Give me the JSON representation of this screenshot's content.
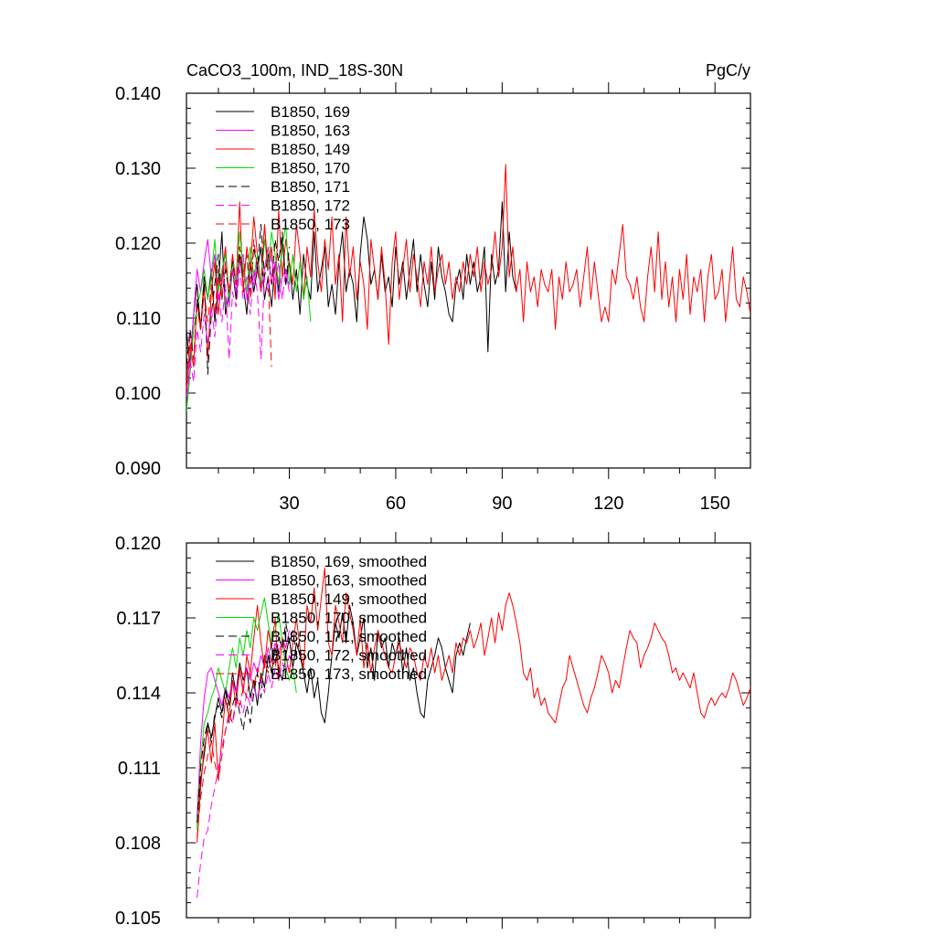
{
  "chart_data": [
    {
      "type": "line",
      "title": "CaCO3_100m, IND_18S-30N",
      "units": "PgC/y",
      "xlim": [
        1,
        160
      ],
      "ylim": [
        0.09,
        0.14
      ],
      "xticks": [
        30,
        60,
        90,
        120,
        150
      ],
      "xtick_labels": [
        "30",
        "60",
        "90",
        "120",
        "150"
      ],
      "yticks": [
        0.09,
        0.1,
        0.11,
        0.12,
        0.13,
        0.14
      ],
      "ytick_labels": [
        "0.090",
        "0.100",
        "0.110",
        "0.120",
        "0.130",
        "0.140"
      ],
      "legend_position": "top-left",
      "series": [
        {
          "name": "B1850, 169",
          "color": "#000000",
          "dash": "solid",
          "start": 1,
          "values": [
            0.1085,
            0.1035,
            0.1105,
            0.1145,
            0.1085,
            0.1155,
            0.1125,
            0.1165,
            0.1095,
            0.1145,
            0.1215,
            0.1105,
            0.1135,
            0.1165,
            0.1125,
            0.1185,
            0.1145,
            0.1105,
            0.1175,
            0.1135,
            0.1165,
            0.1195,
            0.1125,
            0.1155,
            0.1115,
            0.1175,
            0.1135,
            0.1205,
            0.1145,
            0.1175,
            0.1125,
            0.1165,
            0.1105,
            0.1185,
            0.1145,
            0.1125,
            0.1215,
            0.1135,
            0.1165,
            0.1195,
            0.1115,
            0.1145,
            0.1105,
            0.1175,
            0.1215,
            0.1135,
            0.1165,
            0.1145,
            0.1095,
            0.1185,
            0.1235,
            0.1205,
            0.1145,
            0.1165,
            0.1125,
            0.1185,
            0.1135,
            0.1155,
            0.1115,
            0.1195,
            0.1145,
            0.1175,
            0.1125,
            0.1165,
            0.1205,
            0.1135,
            0.1185,
            0.1145,
            0.1115,
            0.1175,
            0.1125,
            0.1195,
            0.1155,
            0.1135,
            0.1105,
            0.1095,
            0.1145,
            0.1165,
            0.1125,
            0.1185,
            0.1145,
            0.1175,
            0.1135,
            0.1155,
            0.1195,
            0.1055,
            0.1185,
            0.1145,
            0.1165,
            0.1255,
            0.1135,
            0.1215,
            0.1155,
            0.1135
          ]
        },
        {
          "name": "B1850, 163",
          "color": "#ff00ff",
          "dash": "solid",
          "start": 1,
          "values": [
            0.0975,
            0.1045,
            0.1105,
            0.1165,
            0.1135,
            0.1175,
            0.1205,
            0.1155,
            0.1185,
            0.1125,
            0.1145,
            0.1195,
            0.1115,
            0.1165,
            0.1135,
            0.1175,
            0.1185,
            0.1125,
            0.1155,
            0.1145,
            0.1175,
            0.1135,
            0.1165,
            0.1195,
            0.1145,
            0.1175,
            0.1125,
            0.1155,
            0.1165,
            0.1135
          ]
        },
        {
          "name": "B1850, 149",
          "color": "#ff0000",
          "dash": "solid",
          "start": 1,
          "values": [
            0.1005,
            0.1065,
            0.1035,
            0.1125,
            0.1085,
            0.1145,
            0.1045,
            0.1135,
            0.1175,
            0.1105,
            0.1155,
            0.1195,
            0.1125,
            0.1185,
            0.1145,
            0.1255,
            0.1135,
            0.1195,
            0.1165,
            0.1235,
            0.1185,
            0.1145,
            0.1225,
            0.1165,
            0.1195,
            0.1125,
            0.1245,
            0.1155,
            0.1205,
            0.1175,
            0.1145,
            0.1225,
            0.1185,
            0.1125,
            0.1195,
            0.1155,
            0.1245,
            0.1175,
            0.1135,
            0.1205,
            0.1165,
            0.1235,
            0.1145,
            0.1185,
            0.1095,
            0.1235,
            0.1155,
            0.1195,
            0.1125,
            0.1175,
            0.1145,
            0.1085,
            0.1205,
            0.1165,
            0.1125,
            0.1195,
            0.1145,
            0.1065,
            0.1175,
            0.1215,
            0.1125,
            0.1165,
            0.1205,
            0.1135,
            0.1185,
            0.1155,
            0.1115,
            0.1175,
            0.1145,
            0.1195,
            0.1135,
            0.1165,
            0.1185,
            0.1145,
            0.1175,
            0.1125,
            0.1155,
            0.1135,
            0.1175,
            0.1145,
            0.1185,
            0.1155,
            0.1195,
            0.1135,
            0.1175,
            0.1145,
            0.1165,
            0.1215,
            0.1155,
            0.1195,
            0.1305,
            0.1155,
            0.1195,
            0.1135,
            0.1165,
            0.1095,
            0.1175,
            0.1135,
            0.1155,
            0.1115,
            0.1165,
            0.1145,
            0.1135,
            0.1165,
            0.1085,
            0.1155,
            0.1125,
            0.1175,
            0.1135,
            0.1145,
            0.1165,
            0.1115,
            0.1155,
            0.1195,
            0.1125,
            0.1175,
            0.1135,
            0.1095,
            0.1115,
            0.1095,
            0.1165,
            0.1145,
            0.1185,
            0.1225,
            0.1155,
            0.1145,
            0.1125,
            0.1155,
            0.1115,
            0.1095,
            0.1155,
            0.1195,
            0.1135,
            0.1215,
            0.1125,
            0.1175,
            0.1115,
            0.1155,
            0.1095,
            0.1165,
            0.1125,
            0.1185,
            0.1105,
            0.1155,
            0.1135,
            0.1165,
            0.1095,
            0.1155,
            0.1185,
            0.1125,
            0.1135,
            0.1165,
            0.1095,
            0.1145,
            0.1195,
            0.1125,
            0.1115,
            0.1155,
            0.1135,
            0.1105,
            0.1165,
            0.1175
          ]
        },
        {
          "name": "B1850, 170",
          "color": "#00dd00",
          "dash": "solid",
          "start": 1,
          "values": [
            0.0975,
            0.1025,
            0.1085,
            0.1115,
            0.1135,
            0.1165,
            0.1125,
            0.1155,
            0.1205,
            0.1135,
            0.1165,
            0.1185,
            0.1125,
            0.1175,
            0.1145,
            0.1215,
            0.1165,
            0.1135,
            0.1195,
            0.1155,
            0.1185,
            0.1145,
            0.1205,
            0.1165,
            0.1215,
            0.1185,
            0.1145,
            0.1195,
            0.1225,
            0.1145,
            0.1185,
            0.1135,
            0.1175,
            0.1125,
            0.1155,
            0.1095
          ]
        },
        {
          "name": "B1850, 171",
          "color": "#000000",
          "dash": "dash",
          "start": 1,
          "values": [
            0.1035,
            0.1085,
            0.1045,
            0.1125,
            0.1085,
            0.1155,
            0.1025,
            0.1105,
            0.1145,
            0.1185,
            0.1125,
            0.1165,
            0.1135,
            0.1175,
            0.1145,
            0.1195,
            0.1155,
            0.1185,
            0.1135,
            0.1195,
            0.1165,
            0.1225,
            0.1155,
            0.1185,
            0.1145,
            0.1205,
            0.1175,
            0.1215,
            0.1145,
            0.1195
          ]
        },
        {
          "name": "B1850, 172",
          "color": "#ff00ff",
          "dash": "dash",
          "start": 1,
          "values": [
            0.0995,
            0.1045,
            0.1015,
            0.1085,
            0.1055,
            0.1105,
            0.1065,
            0.1115,
            0.1075,
            0.1135,
            0.1095,
            0.1145,
            0.1045,
            0.1135,
            0.1115,
            0.1165,
            0.1125,
            0.1155,
            0.1105,
            0.1165,
            0.1135,
            0.1045,
            0.1155,
            0.1135,
            0.1185,
            0.1145,
            0.1175,
            0.1125,
            0.1165,
            0.1145
          ]
        },
        {
          "name": "B1850, 173",
          "color": "#ff0000",
          "dash": "dash",
          "start": 1,
          "values": [
            0.1015,
            0.1075,
            0.1045,
            0.1115,
            0.1085,
            0.1135,
            0.1095,
            0.1145,
            0.1105,
            0.1165,
            0.1125,
            0.1175,
            0.1135,
            0.1185,
            0.1145,
            0.1195,
            0.1155,
            0.1185,
            0.1125,
            0.1205,
            0.1165,
            0.1135,
            0.1225,
            0.1155,
            0.1035
          ]
        }
      ]
    },
    {
      "type": "line",
      "xlim": [
        1,
        160
      ],
      "ylim": [
        0.105,
        0.12
      ],
      "xticks": [
        30,
        60,
        90,
        120,
        150
      ],
      "yticks": [
        0.105,
        0.108,
        0.111,
        0.114,
        0.117,
        0.12
      ],
      "ytick_labels": [
        "0.105",
        "0.108",
        "0.111",
        "0.114",
        "0.117",
        "0.120"
      ],
      "legend_position": "top-left",
      "series": [
        {
          "name": "B1850, 169, smoothed",
          "color": "#000000",
          "dash": "solid",
          "start": 4,
          "values": [
            0.1088,
            0.1105,
            0.1115,
            0.1128,
            0.1122,
            0.113,
            0.1138,
            0.1132,
            0.1142,
            0.1135,
            0.1148,
            0.114,
            0.1152,
            0.1145,
            0.115,
            0.1138,
            0.1145,
            0.1135,
            0.1148,
            0.1142,
            0.1155,
            0.1148,
            0.1158,
            0.115,
            0.1145,
            0.1155,
            0.1162,
            0.115,
            0.116,
            0.1155,
            0.1148,
            0.114,
            0.115,
            0.1138,
            0.1145,
            0.1132,
            0.1128,
            0.114,
            0.1155,
            0.1168,
            0.1162,
            0.1172,
            0.116,
            0.1175,
            0.1168,
            0.1155,
            0.1162,
            0.117,
            0.115,
            0.1158,
            0.1145,
            0.1165,
            0.1158,
            0.1162,
            0.115,
            0.116,
            0.1155,
            0.1162,
            0.1148,
            0.1158,
            0.1145,
            0.115,
            0.114,
            0.1132,
            0.113,
            0.1145,
            0.115,
            0.1155,
            0.1162,
            0.1158,
            0.115,
            0.1145,
            0.114,
            0.1155,
            0.116,
            0.1155,
            0.1162,
            0.1168
          ]
        },
        {
          "name": "B1850, 163, smoothed",
          "color": "#ff00ff",
          "dash": "solid",
          "start": 4,
          "values": [
            0.109,
            0.112,
            0.1138,
            0.1148,
            0.115,
            0.1145,
            0.114,
            0.1135,
            0.1142,
            0.1138,
            0.1145,
            0.114,
            0.1148,
            0.1142,
            0.115,
            0.1145,
            0.1152,
            0.1148,
            0.1155,
            0.115,
            0.1158,
            0.1152,
            0.116,
            0.1155,
            0.1162,
            0.1158,
            0.1165
          ]
        },
        {
          "name": "B1850, 149, smoothed",
          "color": "#ff0000",
          "dash": "solid",
          "start": 4,
          "values": [
            0.108,
            0.1102,
            0.1118,
            0.1125,
            0.1112,
            0.1128,
            0.1105,
            0.1122,
            0.1138,
            0.113,
            0.1145,
            0.1135,
            0.115,
            0.114,
            0.1155,
            0.1148,
            0.1162,
            0.1175,
            0.116,
            0.115,
            0.1165,
            0.1158,
            0.117,
            0.1145,
            0.1162,
            0.1155,
            0.1148,
            0.116,
            0.117,
            0.1158,
            0.115,
            0.1175,
            0.1168,
            0.1182,
            0.1165,
            0.1178,
            0.119,
            0.116,
            0.1155,
            0.1175,
            0.1168,
            0.116,
            0.118,
            0.1172,
            0.1165,
            0.1155,
            0.117,
            0.115,
            0.116,
            0.1148,
            0.1158,
            0.1165,
            0.116,
            0.1155,
            0.115,
            0.1148,
            0.1155,
            0.116,
            0.1155,
            0.115,
            0.1158,
            0.1155,
            0.1148,
            0.1145,
            0.1155,
            0.115,
            0.1158,
            0.1148,
            0.1155,
            0.1145,
            0.115,
            0.1155,
            0.1148,
            0.116,
            0.1155,
            0.1162,
            0.116,
            0.1165,
            0.1158,
            0.1162,
            0.1168,
            0.1155,
            0.1162,
            0.117,
            0.116,
            0.1172,
            0.1165,
            0.1175,
            0.118,
            0.1175,
            0.1168,
            0.116,
            0.1148,
            0.1145,
            0.115,
            0.1138,
            0.1142,
            0.1135,
            0.1138,
            0.1132,
            0.113,
            0.1128,
            0.1135,
            0.1142,
            0.1145,
            0.1155,
            0.115,
            0.1145,
            0.114,
            0.1135,
            0.1132,
            0.1138,
            0.1142,
            0.1148,
            0.1155,
            0.1152,
            0.1148,
            0.114,
            0.1145,
            0.1142,
            0.115,
            0.1158,
            0.1165,
            0.1162,
            0.116,
            0.115,
            0.1155,
            0.1158,
            0.1162,
            0.1168,
            0.1165,
            0.1162,
            0.116,
            0.1155,
            0.1148,
            0.115,
            0.1145,
            0.1148,
            0.1145,
            0.1142,
            0.1148,
            0.114,
            0.1132,
            0.113,
            0.1135,
            0.1138,
            0.1135,
            0.1138,
            0.114,
            0.1138,
            0.1142,
            0.1148,
            0.1145,
            0.114,
            0.1135,
            0.1138,
            0.1142,
            0.115
          ]
        },
        {
          "name": "B1850, 170, smoothed",
          "color": "#00dd00",
          "dash": "solid",
          "start": 4,
          "values": [
            0.1085,
            0.1112,
            0.1128,
            0.1132,
            0.1138,
            0.1142,
            0.115,
            0.1145,
            0.114,
            0.115,
            0.1158,
            0.115,
            0.1162,
            0.1155,
            0.1165,
            0.1158,
            0.117,
            0.1165,
            0.1172,
            0.1178,
            0.1168,
            0.116,
            0.1165,
            0.1172,
            0.116,
            0.115,
            0.1145,
            0.115,
            0.114
          ]
        },
        {
          "name": "B1850, 171, smoothed",
          "color": "#000000",
          "dash": "dash",
          "start": 4,
          "values": [
            0.1088,
            0.111,
            0.1122,
            0.1128,
            0.112,
            0.1132,
            0.1135,
            0.113,
            0.1142,
            0.1128,
            0.1135,
            0.114,
            0.1132,
            0.1125,
            0.1135,
            0.1128,
            0.114,
            0.1148,
            0.1138,
            0.1155,
            0.115,
            0.116,
            0.1152,
            0.1162,
            0.1158,
            0.1168,
            0.116,
            0.1165,
            0.1155,
            0.1162
          ]
        },
        {
          "name": "B1850, 172, smoothed",
          "color": "#ff00ff",
          "dash": "dash",
          "start": 4,
          "values": [
            0.1058,
            0.1072,
            0.1082,
            0.1085,
            0.1095,
            0.1102,
            0.111,
            0.1118,
            0.1125,
            0.113,
            0.1128,
            0.1135,
            0.1138,
            0.1132,
            0.114,
            0.1135,
            0.1142,
            0.1138,
            0.1145,
            0.114,
            0.1148,
            0.1142,
            0.115,
            0.1145,
            0.1152,
            0.1148,
            0.1155,
            0.115
          ]
        },
        {
          "name": "B1850, 173, smoothed",
          "color": "#ff0000",
          "dash": "dash",
          "start": 4,
          "values": [
            0.1082,
            0.1098,
            0.1108,
            0.1115,
            0.112,
            0.1112,
            0.1105,
            0.1115,
            0.1125,
            0.1132,
            0.1128,
            0.1138,
            0.1135,
            0.1142,
            0.1138,
            0.1148,
            0.1142,
            0.115,
            0.1145,
            0.1152,
            0.1148,
            0.1155,
            0.115,
            0.1158
          ]
        }
      ]
    }
  ]
}
